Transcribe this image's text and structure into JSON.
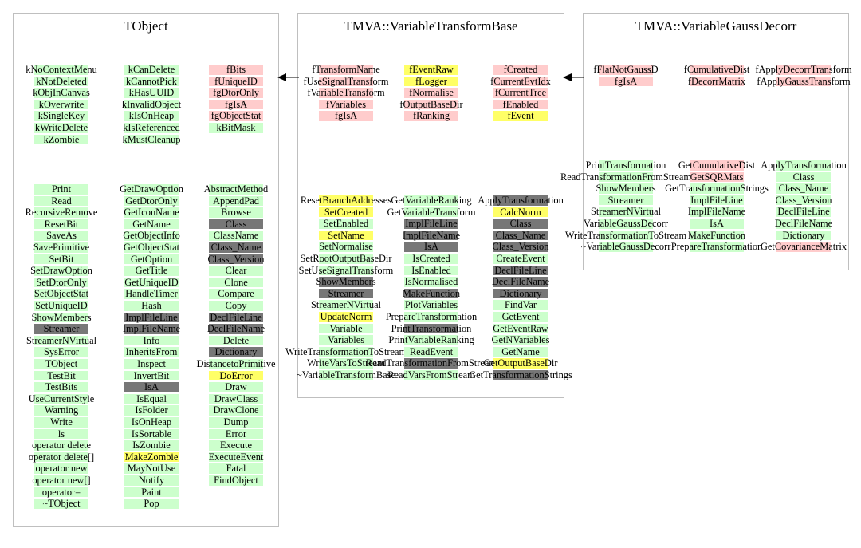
{
  "colors": {
    "public_method": "#ccffcc",
    "data_member": "#ffcccc",
    "protected_method": "#ffff66",
    "inherited_hidden": "#777777",
    "box_border": "#bfbfbf"
  },
  "arrows": [
    "inherits-from",
    "inherits-from"
  ],
  "classes": [
    {
      "title": "TObject",
      "groups": [
        [
          [
            {
              "t": "kNoContextMenu",
              "c": "green"
            },
            {
              "t": "kNotDeleted",
              "c": "green"
            },
            {
              "t": "kObjInCanvas",
              "c": "green"
            },
            {
              "t": "kOverwrite",
              "c": "green"
            },
            {
              "t": "kSingleKey",
              "c": "green"
            },
            {
              "t": "kWriteDelete",
              "c": "green"
            },
            {
              "t": "kZombie",
              "c": "green"
            }
          ],
          [
            {
              "t": "kCanDelete",
              "c": "green"
            },
            {
              "t": "kCannotPick",
              "c": "green"
            },
            {
              "t": "kHasUUID",
              "c": "green"
            },
            {
              "t": "kInvalidObject",
              "c": "green"
            },
            {
              "t": "kIsOnHeap",
              "c": "green"
            },
            {
              "t": "kIsReferenced",
              "c": "green"
            },
            {
              "t": "kMustCleanup",
              "c": "green"
            }
          ],
          [
            {
              "t": "fBits",
              "c": "pink"
            },
            {
              "t": "fUniqueID",
              "c": "pink"
            },
            {
              "t": "fgDtorOnly",
              "c": "pink"
            },
            {
              "t": "fgIsA",
              "c": "pink"
            },
            {
              "t": "fgObjectStat",
              "c": "pink"
            },
            {
              "t": "kBitMask",
              "c": "green"
            }
          ]
        ],
        [
          [
            {
              "t": "Print",
              "c": "green"
            },
            {
              "t": "Read",
              "c": "green"
            },
            {
              "t": "RecursiveRemove",
              "c": "green"
            },
            {
              "t": "ResetBit",
              "c": "green"
            },
            {
              "t": "SaveAs",
              "c": "green"
            },
            {
              "t": "SavePrimitive",
              "c": "green"
            },
            {
              "t": "SetBit",
              "c": "green"
            },
            {
              "t": "SetDrawOption",
              "c": "green"
            },
            {
              "t": "SetDtorOnly",
              "c": "green"
            },
            {
              "t": "SetObjectStat",
              "c": "green"
            },
            {
              "t": "SetUniqueID",
              "c": "green"
            },
            {
              "t": "ShowMembers",
              "c": "green"
            },
            {
              "t": "Streamer",
              "c": "gray"
            },
            {
              "t": "StreamerNVirtual",
              "c": "green"
            },
            {
              "t": "SysError",
              "c": "green"
            },
            {
              "t": "TObject",
              "c": "green"
            },
            {
              "t": "TestBit",
              "c": "green"
            },
            {
              "t": "TestBits",
              "c": "green"
            },
            {
              "t": "UseCurrentStyle",
              "c": "green"
            },
            {
              "t": "Warning",
              "c": "green"
            },
            {
              "t": "Write",
              "c": "green"
            },
            {
              "t": "ls",
              "c": "green"
            },
            {
              "t": "operator delete",
              "c": "green"
            },
            {
              "t": "operator delete[]",
              "c": "green"
            },
            {
              "t": "operator new",
              "c": "green"
            },
            {
              "t": "operator new[]",
              "c": "green"
            },
            {
              "t": "operator=",
              "c": "green"
            },
            {
              "t": "~TObject",
              "c": "green"
            }
          ],
          [
            {
              "t": "GetDrawOption",
              "c": "green"
            },
            {
              "t": "GetDtorOnly",
              "c": "green"
            },
            {
              "t": "GetIconName",
              "c": "green"
            },
            {
              "t": "GetName",
              "c": "green"
            },
            {
              "t": "GetObjectInfo",
              "c": "green"
            },
            {
              "t": "GetObjectStat",
              "c": "green"
            },
            {
              "t": "GetOption",
              "c": "green"
            },
            {
              "t": "GetTitle",
              "c": "green"
            },
            {
              "t": "GetUniqueID",
              "c": "green"
            },
            {
              "t": "HandleTimer",
              "c": "green"
            },
            {
              "t": "Hash",
              "c": "green"
            },
            {
              "t": "ImplFileLine",
              "c": "gray"
            },
            {
              "t": "ImplFileName",
              "c": "gray"
            },
            {
              "t": "Info",
              "c": "green"
            },
            {
              "t": "InheritsFrom",
              "c": "green"
            },
            {
              "t": "Inspect",
              "c": "green"
            },
            {
              "t": "InvertBit",
              "c": "green"
            },
            {
              "t": "IsA",
              "c": "gray"
            },
            {
              "t": "IsEqual",
              "c": "green"
            },
            {
              "t": "IsFolder",
              "c": "green"
            },
            {
              "t": "IsOnHeap",
              "c": "green"
            },
            {
              "t": "IsSortable",
              "c": "green"
            },
            {
              "t": "IsZombie",
              "c": "green"
            },
            {
              "t": "MakeZombie",
              "c": "yellow"
            },
            {
              "t": "MayNotUse",
              "c": "green"
            },
            {
              "t": "Notify",
              "c": "green"
            },
            {
              "t": "Paint",
              "c": "green"
            },
            {
              "t": "Pop",
              "c": "green"
            }
          ],
          [
            {
              "t": "AbstractMethod",
              "c": "green"
            },
            {
              "t": "AppendPad",
              "c": "green"
            },
            {
              "t": "Browse",
              "c": "green"
            },
            {
              "t": "Class",
              "c": "gray"
            },
            {
              "t": "ClassName",
              "c": "green"
            },
            {
              "t": "Class_Name",
              "c": "gray"
            },
            {
              "t": "Class_Version",
              "c": "gray"
            },
            {
              "t": "Clear",
              "c": "green"
            },
            {
              "t": "Clone",
              "c": "green"
            },
            {
              "t": "Compare",
              "c": "green"
            },
            {
              "t": "Copy",
              "c": "green"
            },
            {
              "t": "DeclFileLine",
              "c": "gray"
            },
            {
              "t": "DeclFileName",
              "c": "gray"
            },
            {
              "t": "Delete",
              "c": "green"
            },
            {
              "t": "Dictionary",
              "c": "gray"
            },
            {
              "t": "DistancetoPrimitive",
              "c": "green"
            },
            {
              "t": "DoError",
              "c": "yellow"
            },
            {
              "t": "Draw",
              "c": "green"
            },
            {
              "t": "DrawClass",
              "c": "green"
            },
            {
              "t": "DrawClone",
              "c": "green"
            },
            {
              "t": "Dump",
              "c": "green"
            },
            {
              "t": "Error",
              "c": "green"
            },
            {
              "t": "Execute",
              "c": "green"
            },
            {
              "t": "ExecuteEvent",
              "c": "green"
            },
            {
              "t": "Fatal",
              "c": "green"
            },
            {
              "t": "FindObject",
              "c": "green"
            }
          ]
        ]
      ]
    },
    {
      "title": "TMVA::VariableTransformBase",
      "groups": [
        [
          [
            {
              "t": "fTransformName",
              "c": "pink"
            },
            {
              "t": "fUseSignalTransform",
              "c": "pink"
            },
            {
              "t": "fVariableTransform",
              "c": "pink"
            },
            {
              "t": "fVariables",
              "c": "pink"
            },
            {
              "t": "fgIsA",
              "c": "pink"
            }
          ],
          [
            {
              "t": "fEventRaw",
              "c": "yellow"
            },
            {
              "t": "fLogger",
              "c": "yellow"
            },
            {
              "t": "fNormalise",
              "c": "pink"
            },
            {
              "t": "fOutputBaseDir",
              "c": "pink"
            },
            {
              "t": "fRanking",
              "c": "pink"
            }
          ],
          [
            {
              "t": "fCreated",
              "c": "pink"
            },
            {
              "t": "fCurrentEvtIdx",
              "c": "pink"
            },
            {
              "t": "fCurrentTree",
              "c": "pink"
            },
            {
              "t": "fEnabled",
              "c": "pink"
            },
            {
              "t": "fEvent",
              "c": "yellow"
            }
          ]
        ],
        [
          [
            {
              "t": "ResetBranchAddresses",
              "c": "yellow"
            },
            {
              "t": "SetCreated",
              "c": "yellow"
            },
            {
              "t": "SetEnabled",
              "c": "green"
            },
            {
              "t": "SetName",
              "c": "yellow"
            },
            {
              "t": "SetNormalise",
              "c": "green"
            },
            {
              "t": "SetRootOutputBaseDir",
              "c": "green"
            },
            {
              "t": "SetUseSignalTransform",
              "c": "green"
            },
            {
              "t": "ShowMembers",
              "c": "gray"
            },
            {
              "t": "Streamer",
              "c": "gray"
            },
            {
              "t": "StreamerNVirtual",
              "c": "green"
            },
            {
              "t": "UpdateNorm",
              "c": "yellow"
            },
            {
              "t": "Variable",
              "c": "green"
            },
            {
              "t": "Variables",
              "c": "green"
            },
            {
              "t": "WriteTransformationToStream",
              "c": "green"
            },
            {
              "t": "WriteVarsToStream",
              "c": "green"
            },
            {
              "t": "~VariableTransformBase",
              "c": "green"
            }
          ],
          [
            {
              "t": "GetVariableRanking",
              "c": "green"
            },
            {
              "t": "GetVariableTransform",
              "c": "green"
            },
            {
              "t": "ImplFileLine",
              "c": "gray"
            },
            {
              "t": "ImplFileName",
              "c": "gray"
            },
            {
              "t": "IsA",
              "c": "gray"
            },
            {
              "t": "IsCreated",
              "c": "green"
            },
            {
              "t": "IsEnabled",
              "c": "green"
            },
            {
              "t": "IsNormalised",
              "c": "green"
            },
            {
              "t": "MakeFunction",
              "c": "gray"
            },
            {
              "t": "PlotVariables",
              "c": "green"
            },
            {
              "t": "PrepareTransformation",
              "c": "green"
            },
            {
              "t": "PrintTransformation",
              "c": "gray"
            },
            {
              "t": "PrintVariableRanking",
              "c": "green"
            },
            {
              "t": "ReadEvent",
              "c": "green"
            },
            {
              "t": "ReadTransformationFromStream",
              "c": "gray"
            },
            {
              "t": "ReadVarsFromStream",
              "c": "green"
            }
          ],
          [
            {
              "t": "ApplyTransformation",
              "c": "gray"
            },
            {
              "t": "CalcNorm",
              "c": "yellow"
            },
            {
              "t": "Class",
              "c": "gray"
            },
            {
              "t": "Class_Name",
              "c": "gray"
            },
            {
              "t": "Class_Version",
              "c": "gray"
            },
            {
              "t": "CreateEvent",
              "c": "green"
            },
            {
              "t": "DeclFileLine",
              "c": "gray"
            },
            {
              "t": "DeclFileName",
              "c": "gray"
            },
            {
              "t": "Dictionary",
              "c": "gray"
            },
            {
              "t": "FindVar",
              "c": "green"
            },
            {
              "t": "GetEvent",
              "c": "green"
            },
            {
              "t": "GetEventRaw",
              "c": "green"
            },
            {
              "t": "GetNVariables",
              "c": "green"
            },
            {
              "t": "GetName",
              "c": "green"
            },
            {
              "t": "GetOutputBaseDir",
              "c": "yellow"
            },
            {
              "t": "GetTransformationStrings",
              "c": "gray"
            }
          ]
        ]
      ]
    },
    {
      "title": "TMVA::VariableGaussDecorr",
      "groups": [
        [
          [
            {
              "t": "fFlatNotGaussD",
              "c": "pink"
            },
            {
              "t": "fgIsA",
              "c": "pink"
            }
          ],
          [
            {
              "t": "fCumulativeDist",
              "c": "pink"
            },
            {
              "t": "fDecorrMatrix",
              "c": "pink"
            }
          ],
          [
            {
              "t": "fApplyDecorrTransform",
              "c": "pink"
            },
            {
              "t": "fApplyGaussTransform",
              "c": "pink"
            }
          ]
        ],
        [
          [
            {
              "t": "PrintTransformation",
              "c": "green"
            },
            {
              "t": "ReadTransformationFromStream",
              "c": "green"
            },
            {
              "t": "ShowMembers",
              "c": "green"
            },
            {
              "t": "Streamer",
              "c": "green"
            },
            {
              "t": "StreamerNVirtual",
              "c": "green"
            },
            {
              "t": "VariableGaussDecorr",
              "c": "green"
            },
            {
              "t": "WriteTransformationToStream",
              "c": "green"
            },
            {
              "t": "~VariableGaussDecorr",
              "c": "green"
            }
          ],
          [
            {
              "t": "GetCumulativeDist",
              "c": "pink"
            },
            {
              "t": "GetSQRMats",
              "c": "pink"
            },
            {
              "t": "GetTransformationStrings",
              "c": "green"
            },
            {
              "t": "ImplFileLine",
              "c": "green"
            },
            {
              "t": "ImplFileName",
              "c": "green"
            },
            {
              "t": "IsA",
              "c": "green"
            },
            {
              "t": "MakeFunction",
              "c": "green"
            },
            {
              "t": "PrepareTransformation",
              "c": "green"
            }
          ],
          [
            {
              "t": "ApplyTransformation",
              "c": "green"
            },
            {
              "t": "Class",
              "c": "green"
            },
            {
              "t": "Class_Name",
              "c": "green"
            },
            {
              "t": "Class_Version",
              "c": "green"
            },
            {
              "t": "DeclFileLine",
              "c": "green"
            },
            {
              "t": "DeclFileName",
              "c": "green"
            },
            {
              "t": "Dictionary",
              "c": "green"
            },
            {
              "t": "GetCovarianceMatrix",
              "c": "pink"
            }
          ]
        ]
      ]
    }
  ]
}
